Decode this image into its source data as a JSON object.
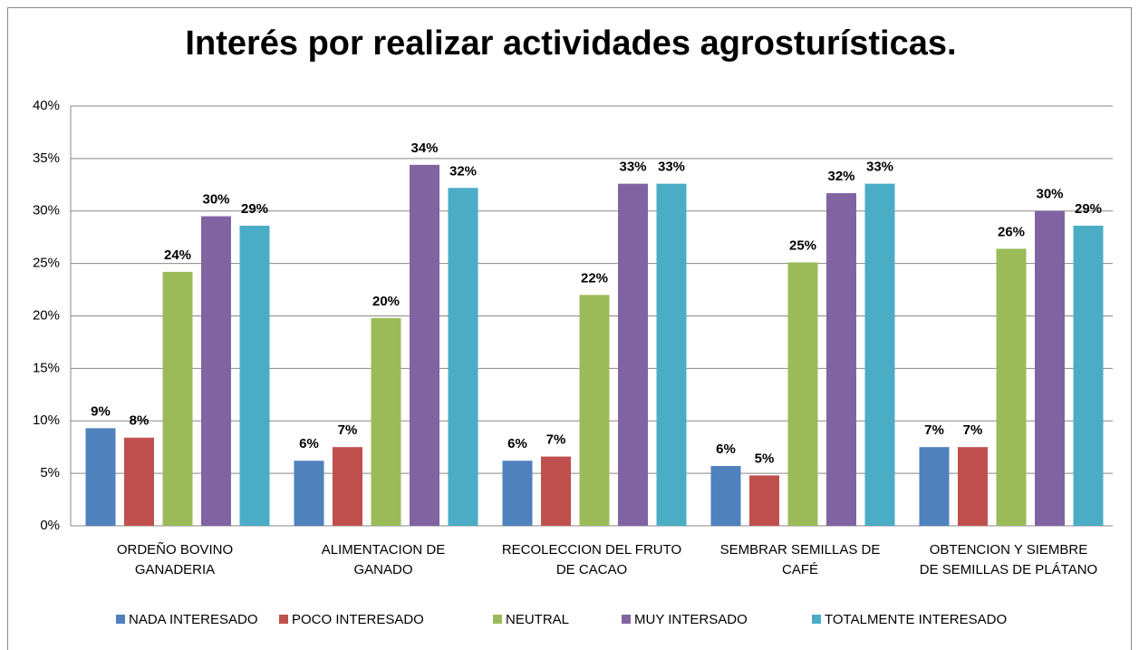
{
  "chart_data": {
    "type": "bar",
    "title": "Interés por realizar actividades agrosturísticas.",
    "categories": [
      [
        "ORDEÑO BOVINO",
        "GANADERIA"
      ],
      [
        "ALIMENTACION DE",
        "GANADO"
      ],
      [
        "RECOLECCION DEL FRUTO",
        "DE CACAO"
      ],
      [
        "SEMBRAR SEMILLAS DE",
        "CAFÉ"
      ],
      [
        "OBTENCION Y SIEMBRE",
        "DE SEMILLAS DE PLÁTANO"
      ]
    ],
    "series": [
      {
        "name": "NADA INTERESADO",
        "color": "#4f81bd",
        "values": [
          9.3,
          6.2,
          6.2,
          5.7,
          7.5
        ],
        "value_labels": [
          "9%",
          "6%",
          "6%",
          "6%",
          "7%"
        ]
      },
      {
        "name": "POCO INTERESADO",
        "color": "#c0504d",
        "values": [
          8.4,
          7.5,
          6.6,
          4.8,
          7.5
        ],
        "value_labels": [
          "8%",
          "7%",
          "7%",
          "5%",
          "7%"
        ]
      },
      {
        "name": "NEUTRAL",
        "color": "#9bbb59",
        "values": [
          24.2,
          19.8,
          22.0,
          25.1,
          26.4
        ],
        "value_labels": [
          "24%",
          "20%",
          "22%",
          "25%",
          "26%"
        ]
      },
      {
        "name": "MUY INTERSADO",
        "color": "#8064a2",
        "values": [
          29.5,
          34.4,
          32.6,
          31.7,
          30.0
        ],
        "value_labels": [
          "30%",
          "34%",
          "33%",
          "32%",
          "30%"
        ]
      },
      {
        "name": "TOTALMENTE INTERESADO",
        "color": "#4bacc6",
        "values": [
          28.6,
          32.2,
          32.6,
          32.6,
          28.6
        ],
        "value_labels": [
          "29%",
          "32%",
          "33%",
          "33%",
          "29%"
        ]
      }
    ],
    "ylim": [
      0,
      40
    ],
    "yticks": [
      {
        "value": 0,
        "label": "0%"
      },
      {
        "value": 5,
        "label": "5%"
      },
      {
        "value": 10,
        "label": "10%"
      },
      {
        "value": 15,
        "label": "15%"
      },
      {
        "value": 20,
        "label": "20%"
      },
      {
        "value": 25,
        "label": "25%"
      },
      {
        "value": 30,
        "label": "30%"
      },
      {
        "value": 35,
        "label": "35%"
      },
      {
        "value": 40,
        "label": "40%"
      }
    ],
    "grid": true,
    "legend": "bottom"
  }
}
